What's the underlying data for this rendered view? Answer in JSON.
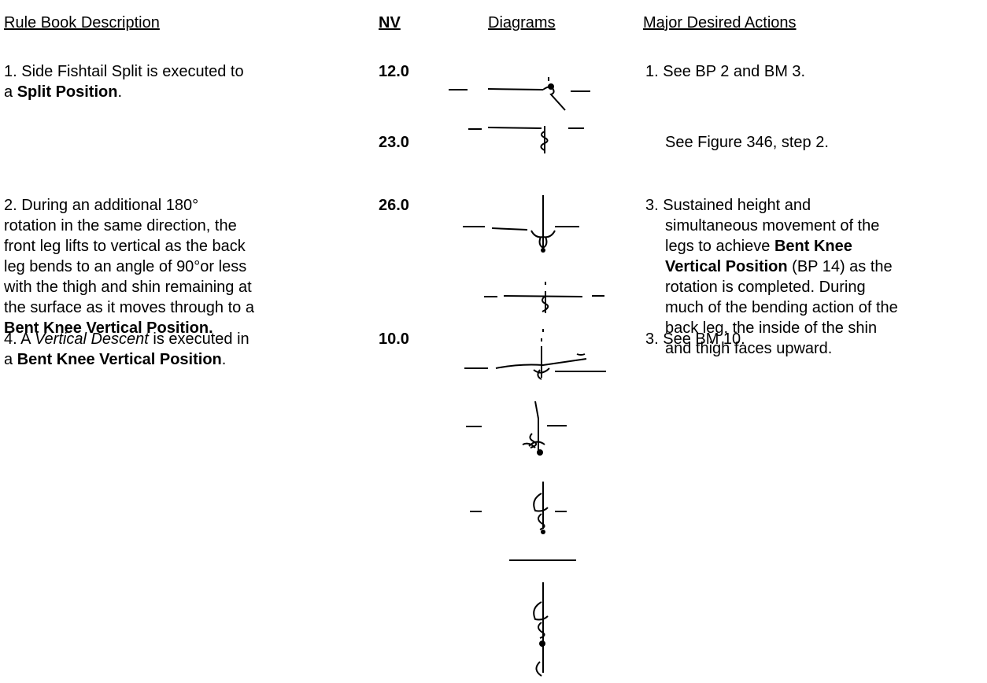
{
  "header": {
    "columns": [
      "Rule Book Description",
      "NV",
      "Diagrams",
      "Major Desired Actions"
    ]
  },
  "entries": [
    {
      "description": [
        [
          {
            "text": "1.  Side Fishtail Split is executed to"
          }
        ],
        [
          {
            "text": "a "
          },
          {
            "text": "Split Position",
            "bold": true
          },
          {
            "text": "."
          }
        ]
      ],
      "steps": [
        {
          "nv": "12.0",
          "action": [
            [
              {
                "text": "1. See BP 2 and BM 3."
              }
            ]
          ]
        },
        {
          "nv": "23.0",
          "action": [
            [
              {
                "text": "See Figure 346, step 2."
              }
            ]
          ]
        }
      ]
    },
    {
      "description": [
        [
          {
            "text": "2.  During an additional 180°"
          }
        ],
        [
          {
            "text": "rotation in the same direction, the"
          }
        ],
        [
          {
            "text": "front leg lifts to vertical as the back"
          }
        ],
        [
          {
            "text": "leg bends to an angle of 90°or less"
          }
        ],
        [
          {
            "text": "with the thigh and shin remaining at"
          }
        ],
        [
          {
            "text": "the surface as it moves through to a"
          }
        ],
        [
          {
            "text": "Bent Knee Vertical Position.",
            "bold": true
          }
        ]
      ],
      "steps": [
        {
          "nv": "26.0",
          "action": [
            [
              {
                "text": "3. Sustained height and"
              }
            ],
            [
              {
                "text": "simultaneous movement of the"
              }
            ],
            [
              {
                "text": "legs to achieve "
              },
              {
                "text": "Bent Knee",
                "bold": true
              }
            ],
            [
              {
                "text": "Vertical Position",
                "bold": true
              },
              {
                "text": " (BP 14) as the"
              }
            ],
            [
              {
                "text": "rotation is completed.  During"
              }
            ],
            [
              {
                "text": "much of the bending action of the"
              }
            ],
            [
              {
                "text": "back leg, the inside of the shin"
              }
            ],
            [
              {
                "text": "and thigh faces upward."
              }
            ]
          ]
        }
      ]
    },
    {
      "description": [
        [
          {
            "text": "4.  A "
          },
          {
            "text": "Vertical Descent",
            "italic": true
          },
          {
            "text": " is executed in"
          }
        ],
        [
          {
            "text": "a "
          },
          {
            "text": "Bent Knee Vertical Position",
            "bold": true
          },
          {
            "text": "."
          }
        ]
      ],
      "steps": [
        {
          "nv": "10.0",
          "action": [
            [
              {
                "text": "3.  See BM 10."
              }
            ]
          ]
        }
      ]
    }
  ]
}
